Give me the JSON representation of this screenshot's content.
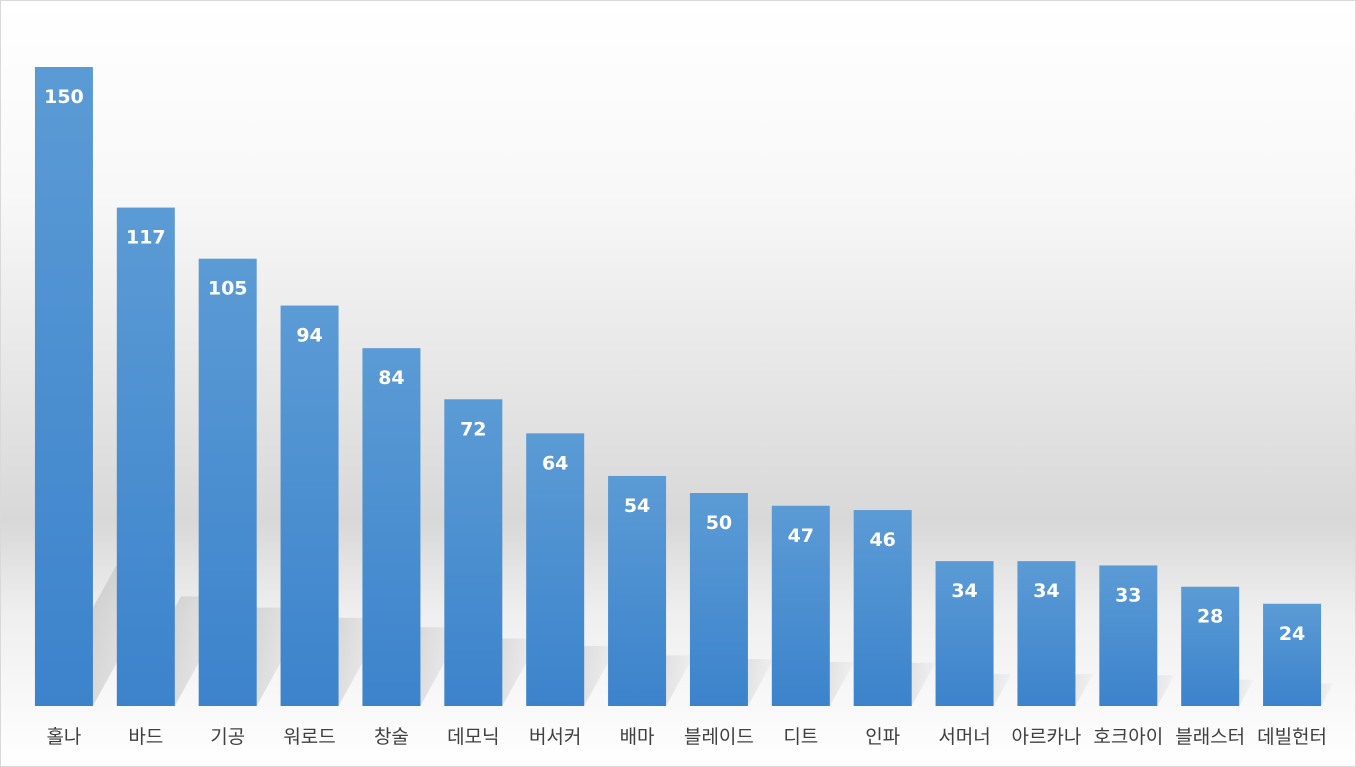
{
  "chart_data": {
    "type": "bar",
    "categories": [
      "홀나",
      "바드",
      "기공",
      "워로드",
      "창술",
      "데모닉",
      "버서커",
      "배마",
      "블레이드",
      "디트",
      "인파",
      "서머너",
      "아르카나",
      "호크아이",
      "블래스터",
      "데빌헌터"
    ],
    "values": [
      150,
      117,
      105,
      94,
      84,
      72,
      64,
      54,
      50,
      47,
      46,
      34,
      34,
      33,
      28,
      24
    ],
    "title": "",
    "xlabel": "",
    "ylabel": "",
    "ylim": [
      0,
      150
    ],
    "grid": false,
    "legend": "none",
    "data_labels": "inside-end",
    "colors": {
      "bar_top": "#5b9bd5",
      "bar_bottom": "#3c83cc",
      "label_text": "#ffffff",
      "category_text": "#404040",
      "background_top": "#ffffff",
      "background_mid": "#d9d9d9"
    }
  }
}
